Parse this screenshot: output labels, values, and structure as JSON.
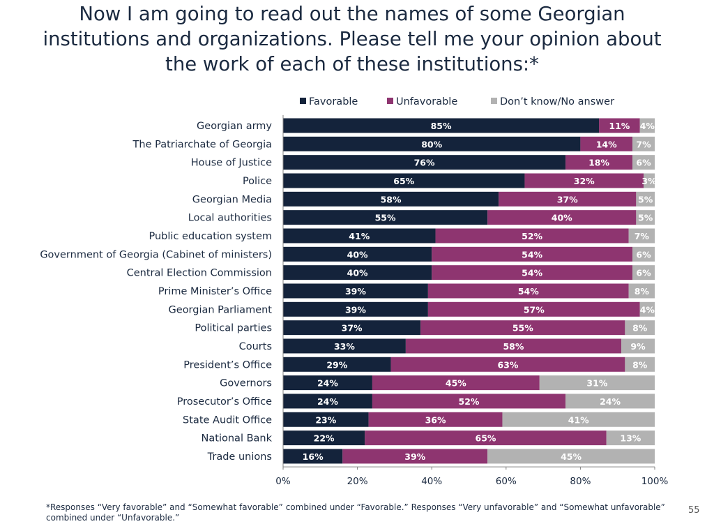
{
  "title_lines": [
    "Now I am going to read out the names of some Georgian",
    "institutions and organizations. Please tell me your opinion about",
    "the work of each of these institutions:*"
  ],
  "footnote": "*Responses “Very favorable” and “Somewhat favorable” combined under “Favorable.” Responses “Very unfavorable” and “Somewhat unfavorable” combined under “Unfavorable.”",
  "page_number": "55",
  "colors": {
    "favorable": "#14233b",
    "unfavorable": "#8e3570",
    "dk": "#b2b2b2"
  },
  "chart_data": {
    "type": "bar",
    "orientation": "horizontal",
    "stacked": true,
    "categories": [
      "Georgian army",
      "The Patriarchate of Georgia",
      "House of Justice",
      "Police",
      "Georgian Media",
      "Local authorities",
      "Public education system",
      "Government of Georgia (Cabinet of ministers)",
      "Central Election Commission",
      "Prime Minister’s Office",
      "Georgian Parliament",
      "Political parties",
      "Courts",
      "President’s Office",
      "Governors",
      "Prosecutor’s Office",
      "State Audit Office",
      "National Bank",
      "Trade unions"
    ],
    "series": [
      {
        "name": "Favorable",
        "values": [
          85,
          80,
          76,
          65,
          58,
          55,
          41,
          40,
          40,
          39,
          39,
          37,
          33,
          29,
          24,
          24,
          23,
          22,
          16
        ]
      },
      {
        "name": "Unfavorable",
        "values": [
          11,
          14,
          18,
          32,
          37,
          40,
          52,
          54,
          54,
          54,
          57,
          55,
          58,
          63,
          45,
          52,
          36,
          65,
          39
        ]
      },
      {
        "name": "Don’t know/No answer",
        "values": [
          4,
          7,
          6,
          3,
          5,
          5,
          7,
          6,
          6,
          8,
          4,
          8,
          9,
          8,
          31,
          24,
          41,
          13,
          45
        ]
      }
    ],
    "xlim": [
      0,
      100
    ],
    "xticks": [
      "0%",
      "20%",
      "40%",
      "60%",
      "80%",
      "100%"
    ],
    "legend_position": "top",
    "data_label_suffix": "%"
  }
}
